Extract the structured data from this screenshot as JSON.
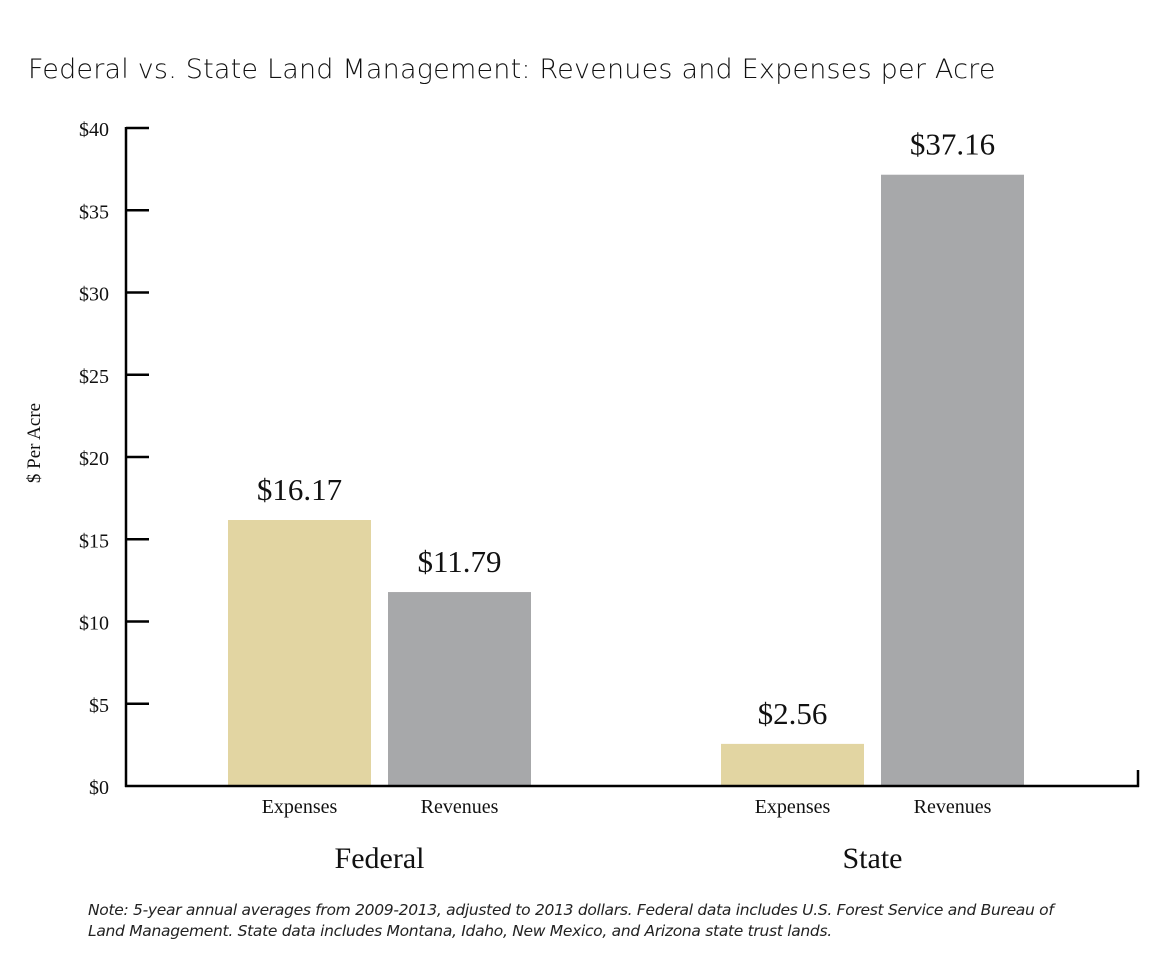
{
  "chart_data": {
    "type": "bar",
    "title": "Federal vs. State Land Management: Revenues and Expenses per Acre",
    "xlabel": "",
    "ylabel": "$ Per Acre",
    "ylim": [
      0,
      40
    ],
    "yticks": [
      0,
      5,
      10,
      15,
      20,
      25,
      30,
      35,
      40
    ],
    "ytick_labels": [
      "$0",
      "$5",
      "$10",
      "$15",
      "$20",
      "$25",
      "$30",
      "$35",
      "$40"
    ],
    "grid": false,
    "legend": "none",
    "groups": [
      {
        "name": "Federal",
        "bars": [
          {
            "category": "Expenses",
            "value": 16.17,
            "label": "$16.17",
            "color": "#e2d5a2"
          },
          {
            "category": "Revenues",
            "value": 11.79,
            "label": "$11.79",
            "color": "#a7a8aa"
          }
        ]
      },
      {
        "name": "State",
        "bars": [
          {
            "category": "Expenses",
            "value": 2.56,
            "label": "$2.56",
            "color": "#e2d5a2"
          },
          {
            "category": "Revenues",
            "value": 37.16,
            "label": "$37.16",
            "color": "#a7a8aa"
          }
        ]
      }
    ],
    "note": "Note: 5-year annual averages from 2009-2013, adjusted to 2013 dollars. Federal data includes U.S. Forest Service and Bureau of Land Management. State data includes Montana, Idaho, New Mexico, and Arizona state trust lands."
  }
}
